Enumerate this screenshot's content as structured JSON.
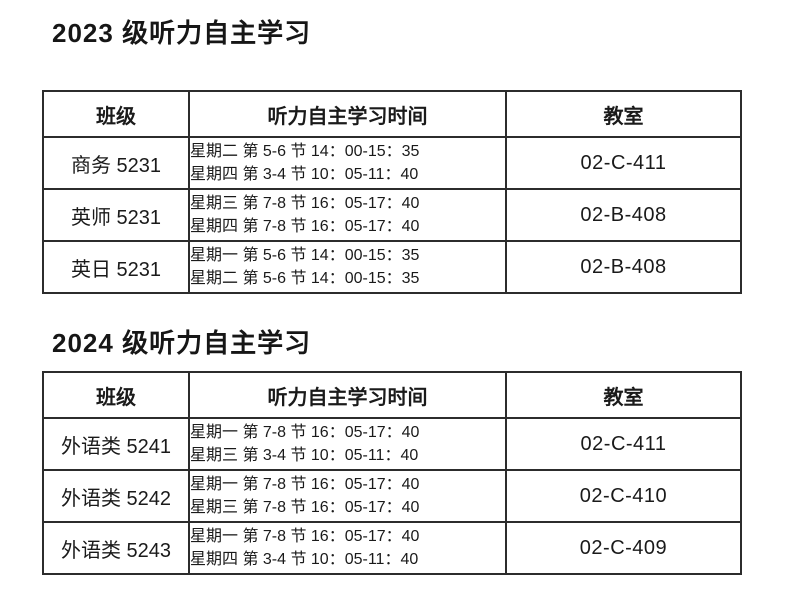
{
  "document": {
    "background": "#ffffff",
    "text_color": "#1a1a1a",
    "table_border_color": "#2c2c2c"
  },
  "sections": [
    {
      "title": "2023 级听力自主学习",
      "table": {
        "headers": {
          "class": "班级",
          "time": "听力自主学习时间",
          "room": "教室"
        },
        "rows": [
          {
            "class_name": "商务 5231",
            "time_line1": "星期二 第 5-6 节 14：00-15：35",
            "time_line2": "星期四 第 3-4 节 10：05-11：40",
            "room": "02-C-411"
          },
          {
            "class_name": "英师 5231",
            "time_line1": "星期三 第 7-8 节 16：05-17：40",
            "time_line2": "星期四 第 7-8 节 16：05-17：40",
            "room": "02-B-408"
          },
          {
            "class_name": "英日 5231",
            "time_line1": "星期一 第 5-6 节 14：00-15：35",
            "time_line2": "星期二 第 5-6 节 14：00-15：35",
            "room": "02-B-408"
          }
        ]
      }
    },
    {
      "title": "2024 级听力自主学习",
      "table": {
        "headers": {
          "class": "班级",
          "time": "听力自主学习时间",
          "room": "教室"
        },
        "rows": [
          {
            "class_name": "外语类 5241",
            "time_line1": "星期一 第 7-8 节 16：05-17：40",
            "time_line2": "星期三 第 3-4 节 10：05-11：40",
            "room": "02-C-411"
          },
          {
            "class_name": "外语类 5242",
            "time_line1": "星期一 第 7-8 节 16：05-17：40",
            "time_line2": "星期三 第 7-8 节 16：05-17：40",
            "room": "02-C-410"
          },
          {
            "class_name": "外语类 5243",
            "time_line1": "星期一 第 7-8 节 16：05-17：40",
            "time_line2": "星期四 第 3-4 节 10：05-11：40",
            "room": "02-C-409"
          }
        ]
      }
    }
  ]
}
